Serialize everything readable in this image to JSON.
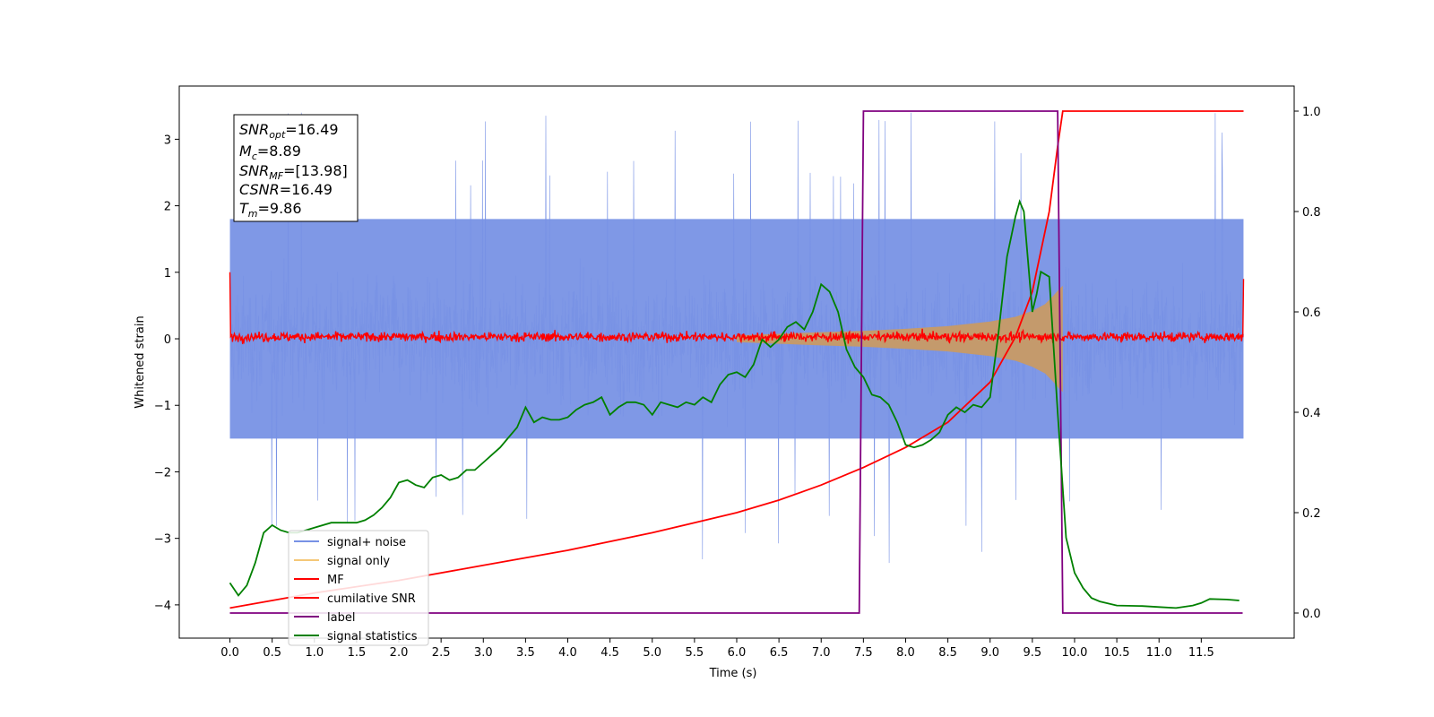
{
  "colors": {
    "signal_noise": "#7892e5",
    "signal_only": "#f5c878",
    "mf": "#ff0000",
    "cumulative_snr": "#ff0000",
    "label": "#800080",
    "signal_statistics": "#008000",
    "fill_envelope": "#c49a6c"
  },
  "info_box": {
    "snr_opt": {
      "base": "SNR",
      "sub": "opt",
      "value": "=16.49"
    },
    "mc": {
      "base": "M",
      "sub": "c",
      "value": "=8.89"
    },
    "snr_mf": {
      "base": "SNR",
      "sub": "MF",
      "value": "=[13.98]"
    },
    "csnr": {
      "base": "CSNR",
      "sub": "",
      "value": "=16.49"
    },
    "tm": {
      "base": "T",
      "sub": "m",
      "value": "=9.86"
    }
  },
  "legend": {
    "signal_noise": "signal+ noise",
    "signal_only": "signal only",
    "mf": "MF",
    "cumulative_snr": "cumilative SNR",
    "label": "label",
    "signal_statistics": "signal statistics"
  },
  "chart_data": {
    "type": "line",
    "xlabel": "Time (s)",
    "ylabel": "Whitened strain",
    "ylabel_right": "",
    "xlim": [
      -0.6,
      12.6
    ],
    "ylim": [
      -4.5,
      3.8
    ],
    "ylim_right": [
      -0.05,
      1.05
    ],
    "xticks": [
      "0.0",
      "0.5",
      "1.0",
      "1.5",
      "2.0",
      "2.5",
      "3.0",
      "3.5",
      "4.0",
      "4.5",
      "5.0",
      "5.5",
      "6.0",
      "6.5",
      "7.0",
      "7.5",
      "8.0",
      "8.5",
      "9.0",
      "9.5",
      "10.0",
      "10.5",
      "11.0",
      "11.5"
    ],
    "yticks_left": [
      "3",
      "2",
      "1",
      "0",
      "−1",
      "−2",
      "−3",
      "−4"
    ],
    "yticks_right": [
      "1.0",
      "0.8",
      "0.6",
      "0.4",
      "0.2",
      "0.0"
    ],
    "series": [
      {
        "name": "signal+ noise",
        "axis": "left",
        "description_range": [
          -4.2,
          3.4
        ],
        "x_range": [
          0.0,
          12.0
        ],
        "envelope_typical": [
          -1.5,
          1.8
        ]
      },
      {
        "name": "signal only",
        "axis": "left",
        "x": [
          6.0,
          7.0,
          7.5,
          8.0,
          8.5,
          9.0,
          9.3,
          9.5,
          9.65,
          9.75,
          9.82,
          9.86
        ],
        "amplitude": [
          0.05,
          0.1,
          0.12,
          0.15,
          0.19,
          0.26,
          0.33,
          0.42,
          0.52,
          0.65,
          0.75,
          0.8
        ]
      },
      {
        "name": "MF",
        "axis": "left",
        "x_range": [
          0.0,
          12.0
        ],
        "typical_band": [
          -0.08,
          0.15
        ],
        "edge_values": {
          "start": 1.0,
          "end": 0.9
        }
      },
      {
        "name": "cumilative SNR",
        "axis": "right",
        "x": [
          0.0,
          0.5,
          1.0,
          2.0,
          3.0,
          4.0,
          5.0,
          6.0,
          6.5,
          7.0,
          7.5,
          8.0,
          8.5,
          9.0,
          9.3,
          9.5,
          9.7,
          9.8,
          9.86,
          10.0,
          12.0
        ],
        "y": [
          0.01,
          0.025,
          0.04,
          0.065,
          0.095,
          0.125,
          0.16,
          0.2,
          0.225,
          0.255,
          0.29,
          0.33,
          0.38,
          0.46,
          0.55,
          0.64,
          0.8,
          0.93,
          1.0,
          1.0,
          1.0
        ]
      },
      {
        "name": "label",
        "axis": "right",
        "x": [
          0.0,
          7.45,
          7.5,
          9.8,
          9.86,
          11.99
        ],
        "y": [
          0.0,
          0.0,
          1.0,
          1.0,
          0.0,
          0.0
        ]
      },
      {
        "name": "signal statistics",
        "axis": "right",
        "x": [
          0.0,
          0.1,
          0.2,
          0.3,
          0.4,
          0.5,
          0.6,
          0.7,
          0.8,
          0.9,
          1.0,
          1.2,
          1.4,
          1.5,
          1.6,
          1.7,
          1.8,
          1.9,
          2.0,
          2.1,
          2.2,
          2.3,
          2.4,
          2.5,
          2.6,
          2.7,
          2.8,
          2.9,
          3.0,
          3.1,
          3.2,
          3.3,
          3.4,
          3.5,
          3.6,
          3.7,
          3.8,
          3.9,
          4.0,
          4.1,
          4.2,
          4.3,
          4.4,
          4.5,
          4.6,
          4.7,
          4.8,
          4.9,
          5.0,
          5.1,
          5.2,
          5.3,
          5.4,
          5.5,
          5.6,
          5.7,
          5.8,
          5.9,
          6.0,
          6.1,
          6.2,
          6.3,
          6.4,
          6.5,
          6.6,
          6.7,
          6.8,
          6.9,
          7.0,
          7.1,
          7.2,
          7.3,
          7.4,
          7.5,
          7.6,
          7.7,
          7.8,
          7.9,
          8.0,
          8.1,
          8.2,
          8.3,
          8.4,
          8.5,
          8.6,
          8.7,
          8.8,
          8.9,
          9.0,
          9.1,
          9.2,
          9.3,
          9.35,
          9.4,
          9.5,
          9.55,
          9.6,
          9.7,
          9.8,
          9.9,
          10.0,
          10.1,
          10.2,
          10.3,
          10.5,
          10.8,
          11.0,
          11.2,
          11.4,
          11.5,
          11.6,
          11.8,
          11.95
        ],
        "y": [
          0.06,
          0.035,
          0.055,
          0.1,
          0.16,
          0.175,
          0.165,
          0.16,
          0.16,
          0.165,
          0.17,
          0.18,
          0.18,
          0.18,
          0.185,
          0.195,
          0.21,
          0.23,
          0.26,
          0.265,
          0.255,
          0.25,
          0.27,
          0.275,
          0.265,
          0.27,
          0.285,
          0.285,
          0.3,
          0.315,
          0.33,
          0.35,
          0.37,
          0.41,
          0.38,
          0.39,
          0.385,
          0.385,
          0.39,
          0.405,
          0.415,
          0.42,
          0.43,
          0.395,
          0.41,
          0.42,
          0.42,
          0.415,
          0.395,
          0.42,
          0.415,
          0.41,
          0.42,
          0.415,
          0.43,
          0.42,
          0.455,
          0.475,
          0.48,
          0.47,
          0.495,
          0.545,
          0.53,
          0.545,
          0.57,
          0.58,
          0.565,
          0.6,
          0.655,
          0.64,
          0.6,
          0.525,
          0.49,
          0.47,
          0.435,
          0.43,
          0.415,
          0.38,
          0.335,
          0.33,
          0.335,
          0.345,
          0.36,
          0.395,
          0.41,
          0.4,
          0.415,
          0.41,
          0.43,
          0.56,
          0.71,
          0.79,
          0.82,
          0.8,
          0.6,
          0.635,
          0.68,
          0.67,
          0.4,
          0.15,
          0.08,
          0.05,
          0.03,
          0.023,
          0.015,
          0.014,
          0.012,
          0.01,
          0.015,
          0.02,
          0.028,
          0.027,
          0.025
        ]
      }
    ]
  }
}
